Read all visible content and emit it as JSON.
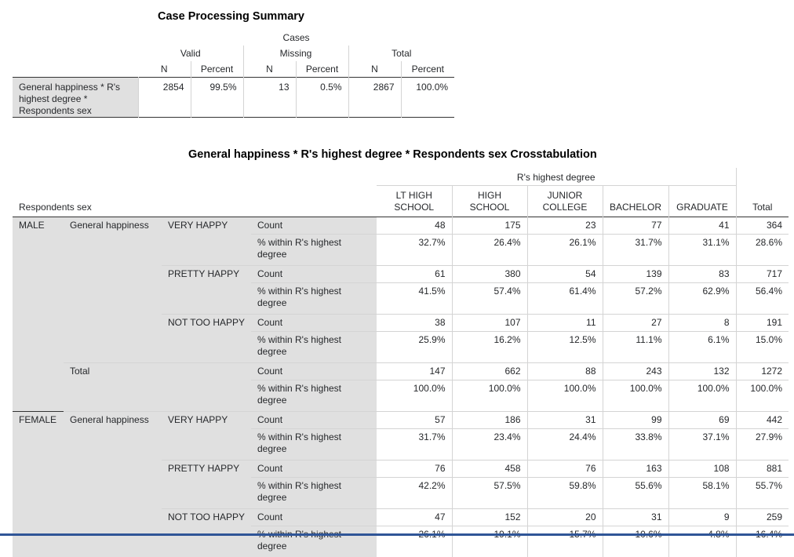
{
  "case_summary": {
    "title": "Case Processing Summary",
    "cases_label": "Cases",
    "groups": [
      "Valid",
      "Missing",
      "Total"
    ],
    "col_headers": [
      "N",
      "Percent",
      "N",
      "Percent",
      "N",
      "Percent"
    ],
    "row_label_lines": [
      "General happiness * R's",
      "highest degree *",
      "Respondents sex"
    ],
    "values": [
      "2854",
      "99.5%",
      "13",
      "0.5%",
      "2867",
      "100.0%"
    ]
  },
  "crosstab": {
    "title": "General happiness * R's highest degree * Respondents sex Crosstabulation",
    "spanner": "R's highest degree",
    "corner_label": "Respondents sex",
    "columns": [
      [
        "LT HIGH",
        "SCHOOL"
      ],
      [
        "HIGH",
        "SCHOOL"
      ],
      [
        "JUNIOR",
        "COLLEGE"
      ],
      [
        "BACHELOR",
        ""
      ],
      [
        "GRADUATE",
        ""
      ]
    ],
    "total_label": "Total",
    "variable_label": "General happiness",
    "stat_count": "Count",
    "stat_pct_lines": [
      "% within R's highest",
      "degree"
    ],
    "rows": [
      {
        "sex": "MALE",
        "var": "General happiness",
        "cat": "VERY HAPPY",
        "count": [
          "48",
          "175",
          "23",
          "77",
          "41",
          "364"
        ],
        "pct": [
          "32.7%",
          "26.4%",
          "26.1%",
          "31.7%",
          "31.1%",
          "28.6%"
        ]
      },
      {
        "sex": "",
        "var": "",
        "cat": "PRETTY HAPPY",
        "count": [
          "61",
          "380",
          "54",
          "139",
          "83",
          "717"
        ],
        "pct": [
          "41.5%",
          "57.4%",
          "61.4%",
          "57.2%",
          "62.9%",
          "56.4%"
        ]
      },
      {
        "sex": "",
        "var": "",
        "cat": "NOT TOO HAPPY",
        "count": [
          "38",
          "107",
          "11",
          "27",
          "8",
          "191"
        ],
        "pct": [
          "25.9%",
          "16.2%",
          "12.5%",
          "11.1%",
          "6.1%",
          "15.0%"
        ]
      },
      {
        "sex": "",
        "var": "Total",
        "cat": "",
        "count": [
          "147",
          "662",
          "88",
          "243",
          "132",
          "1272"
        ],
        "pct": [
          "100.0%",
          "100.0%",
          "100.0%",
          "100.0%",
          "100.0%",
          "100.0%"
        ]
      },
      {
        "sex": "FEMALE",
        "var": "General happiness",
        "cat": "VERY HAPPY",
        "count": [
          "57",
          "186",
          "31",
          "99",
          "69",
          "442"
        ],
        "pct": [
          "31.7%",
          "23.4%",
          "24.4%",
          "33.8%",
          "37.1%",
          "27.9%"
        ]
      },
      {
        "sex": "",
        "var": "",
        "cat": "PRETTY HAPPY",
        "count": [
          "76",
          "458",
          "76",
          "163",
          "108",
          "881"
        ],
        "pct": [
          "42.2%",
          "57.5%",
          "59.8%",
          "55.6%",
          "58.1%",
          "55.7%"
        ]
      },
      {
        "sex": "",
        "var": "",
        "cat": "NOT TOO HAPPY",
        "count": [
          "47",
          "152",
          "20",
          "31",
          "9",
          "259"
        ],
        "pct": [
          "26.1%",
          "19.1%",
          "15.7%",
          "10.6%",
          "4.8%",
          "16.4%"
        ]
      }
    ]
  }
}
